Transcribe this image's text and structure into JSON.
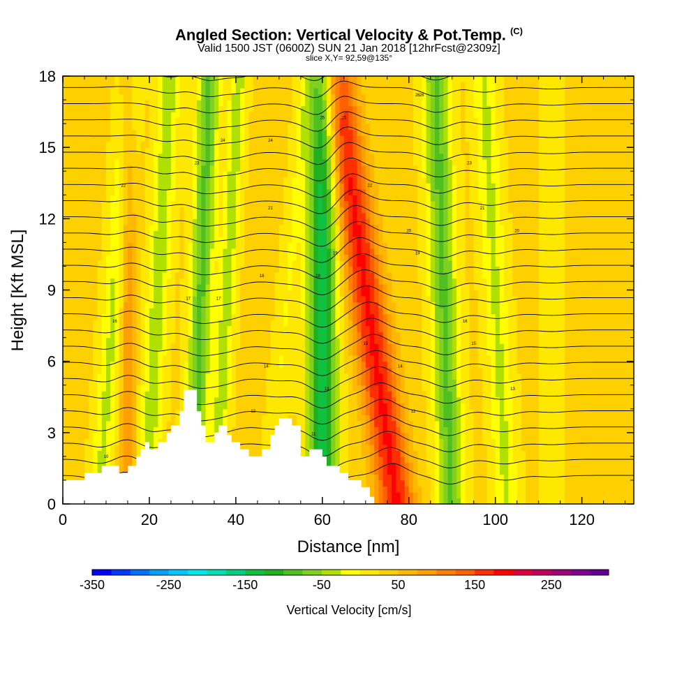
{
  "header": {
    "title": "Angled Section: Vertical Velocity & Pot.Temp.",
    "title_tag": "(C)",
    "subtitle": "Valid 1500 JST (0600Z) SUN 21 Jan 2018 [12hrFcst@2309z]",
    "slice_info": "slice X,Y= 92,59@135°"
  },
  "chart_data": {
    "type": "heatmap",
    "xlabel": "Distance [nm]",
    "ylabel": "Height [Kft MSL]",
    "xlim": [
      0,
      132
    ],
    "ylim": [
      0,
      18
    ],
    "xticks": [
      0,
      20,
      40,
      60,
      80,
      100,
      120
    ],
    "yticks": [
      0,
      3,
      6,
      9,
      12,
      15,
      18
    ],
    "colorbar": {
      "title": "Vertical Velocity [cm/s]",
      "min": -350,
      "max": 325,
      "step": 25,
      "tick_values": [
        -350,
        -250,
        -150,
        -50,
        50,
        150,
        250
      ],
      "tick_labels": [
        "-350",
        "-250",
        "-150",
        "-50",
        "50",
        "150",
        "250"
      ],
      "colors": [
        "#0000ff",
        "#0038ff",
        "#0070ff",
        "#00a0ff",
        "#00c8ff",
        "#00e8e8",
        "#00e0b0",
        "#00d080",
        "#10c040",
        "#20b020",
        "#50c020",
        "#80d020",
        "#b0e000",
        "#ffff00",
        "#ffe800",
        "#ffd000",
        "#ffb800",
        "#ffa000",
        "#ff8000",
        "#ff6000",
        "#ff3000",
        "#ff0000",
        "#e0003c",
        "#c0005a",
        "#a00078",
        "#800090",
        "#600090"
      ]
    },
    "velocity_features": [
      {
        "x": 12,
        "amp": -60,
        "width": 1.8,
        "tilt": 0.4
      },
      {
        "x": 15,
        "amp": 70,
        "width": 1.2,
        "tilt": 0.0
      },
      {
        "x": 22,
        "amp": -70,
        "width": 1.8,
        "tilt": 0.3
      },
      {
        "x": 32,
        "amp": -110,
        "width": 1.8,
        "tilt": 0.2
      },
      {
        "x": 38,
        "amp": -70,
        "width": 1.4,
        "tilt": 0.3
      },
      {
        "x": 52,
        "amp": -30,
        "width": 1.5,
        "tilt": 0.5
      },
      {
        "x": 60,
        "amp": -170,
        "width": 2.4,
        "tilt": 0.0
      },
      {
        "x": 70,
        "amp": 150,
        "width": 3.0,
        "tilt": -0.8
      },
      {
        "x": 88,
        "amp": -110,
        "width": 2.2,
        "tilt": -0.2
      },
      {
        "x": 100,
        "amp": -60,
        "width": 2.0,
        "tilt": -0.3
      },
      {
        "x": 113,
        "amp": -20,
        "width": 2.0,
        "tilt": 0.0
      }
    ],
    "terrain_profile": [
      [
        0,
        1.0
      ],
      [
        5,
        1.0
      ],
      [
        5,
        1.3
      ],
      [
        9,
        1.3
      ],
      [
        9,
        1.6
      ],
      [
        13,
        1.6
      ],
      [
        13,
        1.3
      ],
      [
        15,
        1.3
      ],
      [
        15,
        1.6
      ],
      [
        17,
        1.6
      ],
      [
        17,
        2.0
      ],
      [
        18,
        2.0
      ],
      [
        18,
        2.3
      ],
      [
        19,
        2.3
      ],
      [
        19,
        2.6
      ],
      [
        20,
        2.6
      ],
      [
        20,
        2.3
      ],
      [
        22,
        2.3
      ],
      [
        22,
        2.6
      ],
      [
        24,
        2.6
      ],
      [
        24,
        3.0
      ],
      [
        25,
        3.0
      ],
      [
        25,
        3.3
      ],
      [
        27,
        3.3
      ],
      [
        27,
        3.9
      ],
      [
        28,
        3.9
      ],
      [
        28,
        4.8
      ],
      [
        31,
        4.8
      ],
      [
        31,
        3.9
      ],
      [
        32,
        3.9
      ],
      [
        32,
        3.3
      ],
      [
        33,
        3.3
      ],
      [
        33,
        2.6
      ],
      [
        35,
        2.6
      ],
      [
        35,
        3.0
      ],
      [
        36,
        3.0
      ],
      [
        36,
        3.3
      ],
      [
        38,
        3.3
      ],
      [
        38,
        2.9
      ],
      [
        39,
        2.9
      ],
      [
        39,
        2.6
      ],
      [
        41,
        2.6
      ],
      [
        41,
        2.3
      ],
      [
        43,
        2.3
      ],
      [
        43,
        2.0
      ],
      [
        46,
        2.0
      ],
      [
        46,
        2.3
      ],
      [
        48,
        2.3
      ],
      [
        48,
        2.9
      ],
      [
        49,
        2.9
      ],
      [
        49,
        3.3
      ],
      [
        50,
        3.3
      ],
      [
        50,
        3.6
      ],
      [
        53,
        3.6
      ],
      [
        53,
        3.3
      ],
      [
        55,
        3.3
      ],
      [
        55,
        2.0
      ],
      [
        57,
        2.0
      ],
      [
        57,
        2.3
      ],
      [
        60,
        2.3
      ],
      [
        60,
        2.0
      ],
      [
        61,
        2.0
      ],
      [
        61,
        1.6
      ],
      [
        64,
        1.6
      ],
      [
        64,
        1.3
      ],
      [
        66,
        1.3
      ],
      [
        66,
        1.0
      ],
      [
        69,
        1.0
      ],
      [
        69,
        0.7
      ],
      [
        71,
        0.7
      ],
      [
        71,
        0.3
      ],
      [
        72,
        0.3
      ],
      [
        72,
        0.0
      ],
      [
        132,
        0.0
      ]
    ],
    "theta_contour_labels": [
      "10",
      "11",
      "12",
      "13",
      "14",
      "15",
      "16",
      "17",
      "18",
      "19",
      "20",
      "21",
      "22",
      "23",
      "24",
      "25",
      "26"
    ]
  }
}
